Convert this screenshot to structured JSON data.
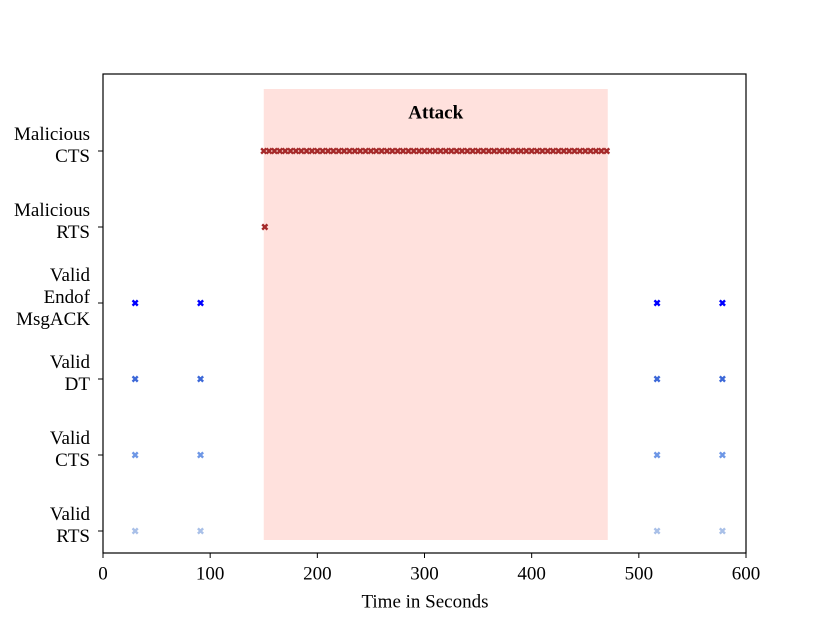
{
  "chart_data": {
    "type": "scatter",
    "xlabel": "Time in Seconds",
    "xlim": [
      0,
      600
    ],
    "xticks": [
      0,
      100,
      200,
      300,
      400,
      500,
      600
    ],
    "categories": [
      [
        "Valid",
        "RTS"
      ],
      [
        "Valid",
        "CTS"
      ],
      [
        "Valid",
        "DT"
      ],
      [
        "Valid",
        "Endof",
        "MsgACK"
      ],
      [
        "Malicious",
        "RTS"
      ],
      [
        "Malicious",
        "CTS"
      ]
    ],
    "span": {
      "label": "Attack",
      "xlim": [
        150,
        471
      ],
      "color": "#ffe1dd"
    },
    "series": [
      {
        "color": "#a9c0e8",
        "values": [
          30,
          91,
          517,
          578
        ]
      },
      {
        "color": "#6e97e6",
        "values": [
          30,
          91,
          517,
          578
        ]
      },
      {
        "color": "#3c68d8",
        "values": [
          30,
          91,
          517,
          578
        ]
      },
      {
        "color": "#0000ff",
        "values": [
          30,
          91,
          517,
          578
        ]
      },
      {
        "color": "#a52a2a",
        "values": [
          151
        ]
      },
      {
        "color": "#a52a2a",
        "values": [
          150,
          155,
          160,
          165,
          170,
          175,
          180,
          185,
          190,
          195,
          200,
          205,
          210,
          215,
          220,
          225,
          230,
          235,
          240,
          245,
          250,
          255,
          260,
          265,
          270,
          275,
          280,
          285,
          290,
          295,
          300,
          305,
          310,
          315,
          320,
          325,
          330,
          335,
          340,
          345,
          350,
          355,
          360,
          365,
          370,
          375,
          380,
          385,
          390,
          395,
          400,
          405,
          410,
          415,
          420,
          425,
          430,
          435,
          440,
          445,
          450,
          455,
          460,
          465,
          470
        ]
      }
    ]
  }
}
